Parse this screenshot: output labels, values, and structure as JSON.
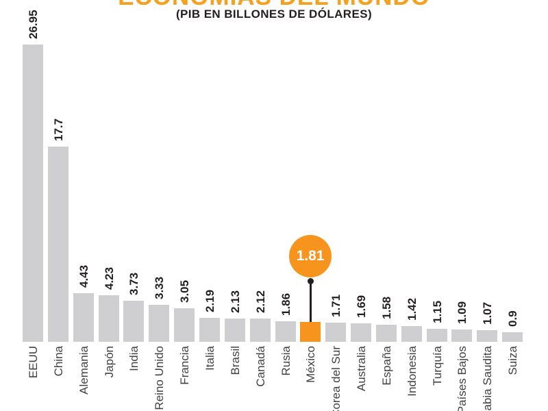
{
  "header": {
    "title": "ECONOMÍAS DEL MUNDO",
    "subtitle": "(PIB EN BILLONES DE DÓLARES)"
  },
  "chart_data": {
    "type": "bar",
    "title": "ECONOMÍAS DEL MUNDO",
    "subtitle": "(PIB EN BILLONES DE DÓLARES)",
    "categories": [
      "EEUU",
      "China",
      "Alemania",
      "Japón",
      "India",
      "Reino Unido",
      "Francia",
      "Italia",
      "Brasil",
      "Canadá",
      "Rusia",
      "México",
      "Corea del Sur",
      "Australia",
      "España",
      "Indonesia",
      "Turquía",
      "Países Bajos",
      "Arabia Saudita",
      "Suiza"
    ],
    "values": [
      26.95,
      17.7,
      4.43,
      4.23,
      3.73,
      3.33,
      3.05,
      2.19,
      2.13,
      2.12,
      1.86,
      1.81,
      1.71,
      1.69,
      1.58,
      1.42,
      1.15,
      1.09,
      1.07,
      0.9
    ],
    "value_labels": [
      "26.95",
      "17.7",
      "4.43",
      "4.23",
      "3.73",
      "3.33",
      "3.05",
      "2.19",
      "2.13",
      "2.12",
      "1.86",
      "1.81",
      "1.71",
      "1.69",
      "1.58",
      "1.42",
      "1.15",
      "1.09",
      "1.07",
      "0.9"
    ],
    "highlight": {
      "category": "México",
      "value_label": "1.81"
    },
    "xlabel": "",
    "ylabel": "",
    "grid": false,
    "legend": false,
    "colors": {
      "bar": "#cfcfd1",
      "highlight": "#f7941e",
      "title": "#f7a01d",
      "value_label": "#231f20",
      "category_label": "#414042",
      "callout_text": "#ffffff",
      "callout_line": "#231f20"
    }
  }
}
